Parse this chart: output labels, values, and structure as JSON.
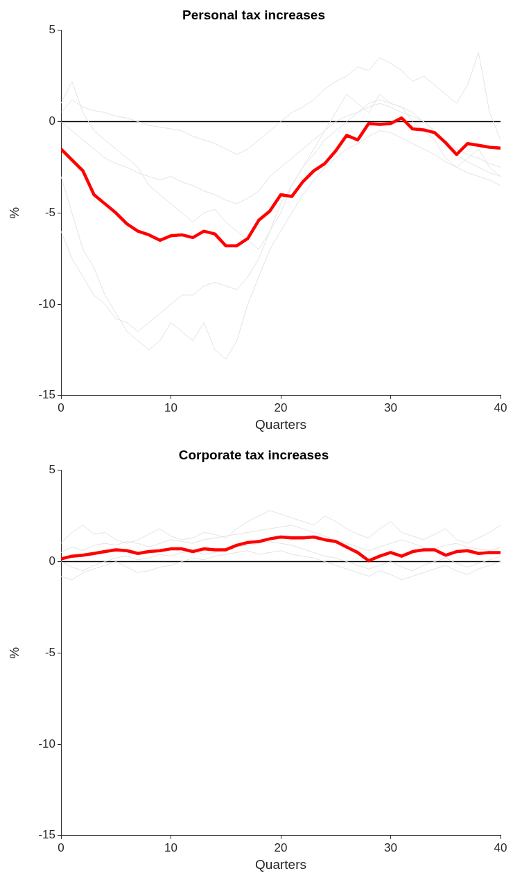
{
  "chart_data": [
    {
      "type": "line",
      "title": "Personal tax increases",
      "xlabel": "Quarters",
      "ylabel": "%",
      "x": [
        0,
        1,
        2,
        3,
        4,
        5,
        6,
        7,
        8,
        9,
        10,
        11,
        12,
        13,
        14,
        15,
        16,
        17,
        18,
        19,
        20,
        21,
        22,
        23,
        24,
        25,
        26,
        27,
        28,
        29,
        30,
        31,
        32,
        33,
        34,
        35,
        36,
        37,
        38,
        39,
        40
      ],
      "xlim": [
        0,
        40
      ],
      "xticks": [
        0,
        10,
        20,
        30,
        40
      ],
      "ylim": [
        -15,
        5
      ],
      "yticks": [
        -15,
        -10,
        -5,
        0,
        5
      ],
      "grid": false,
      "legend": false,
      "marker": "none",
      "ref_lines": [
        {
          "axis": "y",
          "value": 0,
          "color": "#000000"
        }
      ],
      "series": [
        {
          "color": "#ff0000",
          "values": [
            -1.5,
            -2.1,
            -2.7,
            -4.0,
            -4.5,
            -5.0,
            -5.6,
            -6.0,
            -6.2,
            -6.5,
            -6.25,
            -6.2,
            -6.35,
            -6.0,
            -6.15,
            -6.8,
            -6.8,
            -6.4,
            -5.4,
            -4.9,
            -4.0,
            -4.1,
            -3.3,
            -2.7,
            -2.3,
            -1.6,
            -0.75,
            -1.0,
            -0.1,
            -0.15,
            -0.1,
            0.2,
            -0.4,
            -0.45,
            -0.6,
            -1.15,
            -1.8,
            -1.2,
            -1.3,
            -1.4,
            -1.45
          ]
        },
        {
          "color": "#e3e3e3",
          "values": [
            0.5,
            1.2,
            0.8,
            0.6,
            0.5,
            0.3,
            0.2,
            0.0,
            -0.2,
            -0.3,
            -0.4,
            -0.5,
            -0.8,
            -1.0,
            -1.2,
            -1.5,
            -1.8,
            -1.5,
            -1.0,
            -0.5,
            0.0,
            0.5,
            0.8,
            1.2,
            1.8,
            2.2,
            2.5,
            3.0,
            2.8,
            3.5,
            3.2,
            2.8,
            2.2,
            2.5,
            2.0,
            1.5,
            1.0,
            2.0,
            3.8,
            0.5,
            -1.0
          ]
        },
        {
          "color": "#e3e3e3",
          "values": [
            0.0,
            -0.5,
            -1.0,
            -1.5,
            -2.0,
            -2.3,
            -2.5,
            -2.8,
            -3.0,
            -3.2,
            -3.0,
            -3.3,
            -3.5,
            -3.8,
            -4.0,
            -4.3,
            -4.5,
            -4.2,
            -3.8,
            -3.0,
            -2.5,
            -2.0,
            -1.5,
            -1.0,
            -0.5,
            0.0,
            0.3,
            0.5,
            0.8,
            1.0,
            0.8,
            0.5,
            0.3,
            0.0,
            -0.5,
            -1.0,
            -1.5,
            -1.8,
            -2.0,
            -2.3,
            -2.5
          ]
        },
        {
          "color": "#e3e3e3",
          "values": [
            -3.0,
            -5.0,
            -7.0,
            -8.0,
            -9.5,
            -10.5,
            -11.5,
            -12.0,
            -12.5,
            -12.0,
            -11.0,
            -11.5,
            -12.0,
            -11.0,
            -12.5,
            -13.0,
            -12.0,
            -10.0,
            -8.5,
            -7.0,
            -6.0,
            -5.0,
            -4.0,
            -3.2,
            -2.5,
            -2.0,
            -1.5,
            -1.2,
            -0.8,
            -0.5,
            -0.6,
            -0.9,
            -1.2,
            -1.5,
            -1.8,
            -2.2,
            -2.5,
            -2.8,
            -3.0,
            -3.2,
            -3.5
          ]
        },
        {
          "color": "#e3e3e3",
          "values": [
            1.0,
            2.2,
            0.5,
            -0.5,
            -1.0,
            -1.5,
            -2.0,
            -2.5,
            -3.5,
            -4.0,
            -4.5,
            -5.0,
            -5.5,
            -5.0,
            -4.8,
            -5.5,
            -6.0,
            -6.5,
            -7.0,
            -6.0,
            -5.0,
            -3.5,
            -2.5,
            -1.5,
            -0.5,
            0.5,
            1.5,
            1.0,
            0.5,
            1.5,
            1.0,
            0.8,
            0.0,
            -0.5,
            -1.0,
            -2.0,
            -2.5,
            -2.0,
            -1.5,
            -2.5,
            -3.0
          ]
        },
        {
          "color": "#e3e3e3",
          "values": [
            -6.0,
            -7.5,
            -8.5,
            -9.5,
            -10.0,
            -10.8,
            -11.0,
            -11.5,
            -11.0,
            -10.5,
            -10.0,
            -9.5,
            -9.5,
            -9.0,
            -8.8,
            -9.0,
            -9.2,
            -8.5,
            -7.5,
            -6.0,
            -4.5,
            -3.5,
            -2.5,
            -1.8,
            -1.0,
            -0.5,
            0.0,
            0.5,
            1.0,
            1.2,
            1.0,
            0.8,
            0.5,
            0.0,
            -0.5,
            -1.2,
            -1.8,
            -2.2,
            -2.5,
            -2.8,
            -3.0
          ]
        }
      ]
    },
    {
      "type": "line",
      "title": "Corporate tax increases",
      "xlabel": "Quarters",
      "ylabel": "%",
      "x": [
        0,
        1,
        2,
        3,
        4,
        5,
        6,
        7,
        8,
        9,
        10,
        11,
        12,
        13,
        14,
        15,
        16,
        17,
        18,
        19,
        20,
        21,
        22,
        23,
        24,
        25,
        26,
        27,
        28,
        29,
        30,
        31,
        32,
        33,
        34,
        35,
        36,
        37,
        38,
        39,
        40
      ],
      "xlim": [
        0,
        40
      ],
      "xticks": [
        0,
        10,
        20,
        30,
        40
      ],
      "ylim": [
        -15,
        5
      ],
      "yticks": [
        -15,
        -10,
        -5,
        0,
        5
      ],
      "grid": false,
      "legend": false,
      "marker": "none",
      "ref_lines": [
        {
          "axis": "y",
          "value": 0,
          "color": "#000000"
        }
      ],
      "series": [
        {
          "color": "#ff0000",
          "values": [
            0.15,
            0.3,
            0.35,
            0.45,
            0.55,
            0.65,
            0.6,
            0.45,
            0.55,
            0.6,
            0.7,
            0.7,
            0.55,
            0.7,
            0.65,
            0.65,
            0.9,
            1.05,
            1.1,
            1.25,
            1.35,
            1.3,
            1.3,
            1.35,
            1.2,
            1.1,
            0.8,
            0.5,
            0.05,
            0.3,
            0.5,
            0.3,
            0.55,
            0.65,
            0.65,
            0.35,
            0.55,
            0.6,
            0.45,
            0.5,
            0.5
          ]
        },
        {
          "color": "#e3e3e3",
          "values": [
            1.0,
            1.6,
            2.0,
            1.5,
            1.6,
            1.2,
            1.0,
            1.2,
            1.5,
            1.8,
            1.4,
            1.2,
            1.3,
            1.6,
            1.5,
            1.3,
            1.8,
            2.2,
            2.5,
            2.8,
            2.6,
            2.4,
            2.2,
            2.0,
            2.5,
            2.2,
            1.8,
            1.5,
            1.3,
            1.8,
            2.2,
            1.6,
            1.4,
            1.2,
            1.5,
            1.8,
            1.2,
            1.0,
            1.3,
            1.6,
            2.0
          ]
        },
        {
          "color": "#e3e3e3",
          "values": [
            -0.8,
            -1.0,
            -0.6,
            -0.4,
            -0.2,
            0.0,
            -0.3,
            -0.6,
            -0.5,
            -0.3,
            -0.2,
            0.0,
            0.2,
            0.1,
            0.3,
            0.4,
            0.5,
            0.6,
            0.4,
            0.5,
            0.6,
            0.4,
            0.3,
            0.2,
            0.0,
            -0.2,
            -0.4,
            -0.6,
            -0.8,
            -0.5,
            -0.7,
            -1.0,
            -0.8,
            -0.6,
            -0.4,
            -0.2,
            -0.5,
            -0.7,
            -0.4,
            -0.2,
            0.0
          ]
        },
        {
          "color": "#e3e3e3",
          "values": [
            0.5,
            0.8,
            0.6,
            0.9,
            1.0,
            0.9,
            1.1,
            1.0,
            0.8,
            1.0,
            1.2,
            1.1,
            1.0,
            1.2,
            1.3,
            1.4,
            1.5,
            1.6,
            1.7,
            1.8,
            1.9,
            2.0,
            1.8,
            1.6,
            1.4,
            1.2,
            1.0,
            0.8,
            0.6,
            0.8,
            1.0,
            1.2,
            1.0,
            0.8,
            0.7,
            0.9,
            1.0,
            0.8,
            0.7,
            0.6,
            0.8
          ]
        },
        {
          "color": "#e3e3e3",
          "values": [
            0.0,
            -0.3,
            -0.5,
            -0.2,
            0.0,
            0.2,
            0.3,
            0.1,
            0.2,
            0.4,
            0.3,
            0.5,
            0.6,
            0.4,
            0.5,
            0.7,
            0.8,
            0.9,
            1.0,
            1.1,
            1.0,
            0.9,
            0.7,
            0.5,
            0.3,
            0.2,
            0.0,
            -0.2,
            -0.4,
            -0.2,
            0.0,
            -0.3,
            -0.5,
            -0.2,
            0.0,
            0.2,
            -0.1,
            -0.3,
            -0.1,
            0.1,
            0.3
          ]
        }
      ]
    }
  ]
}
